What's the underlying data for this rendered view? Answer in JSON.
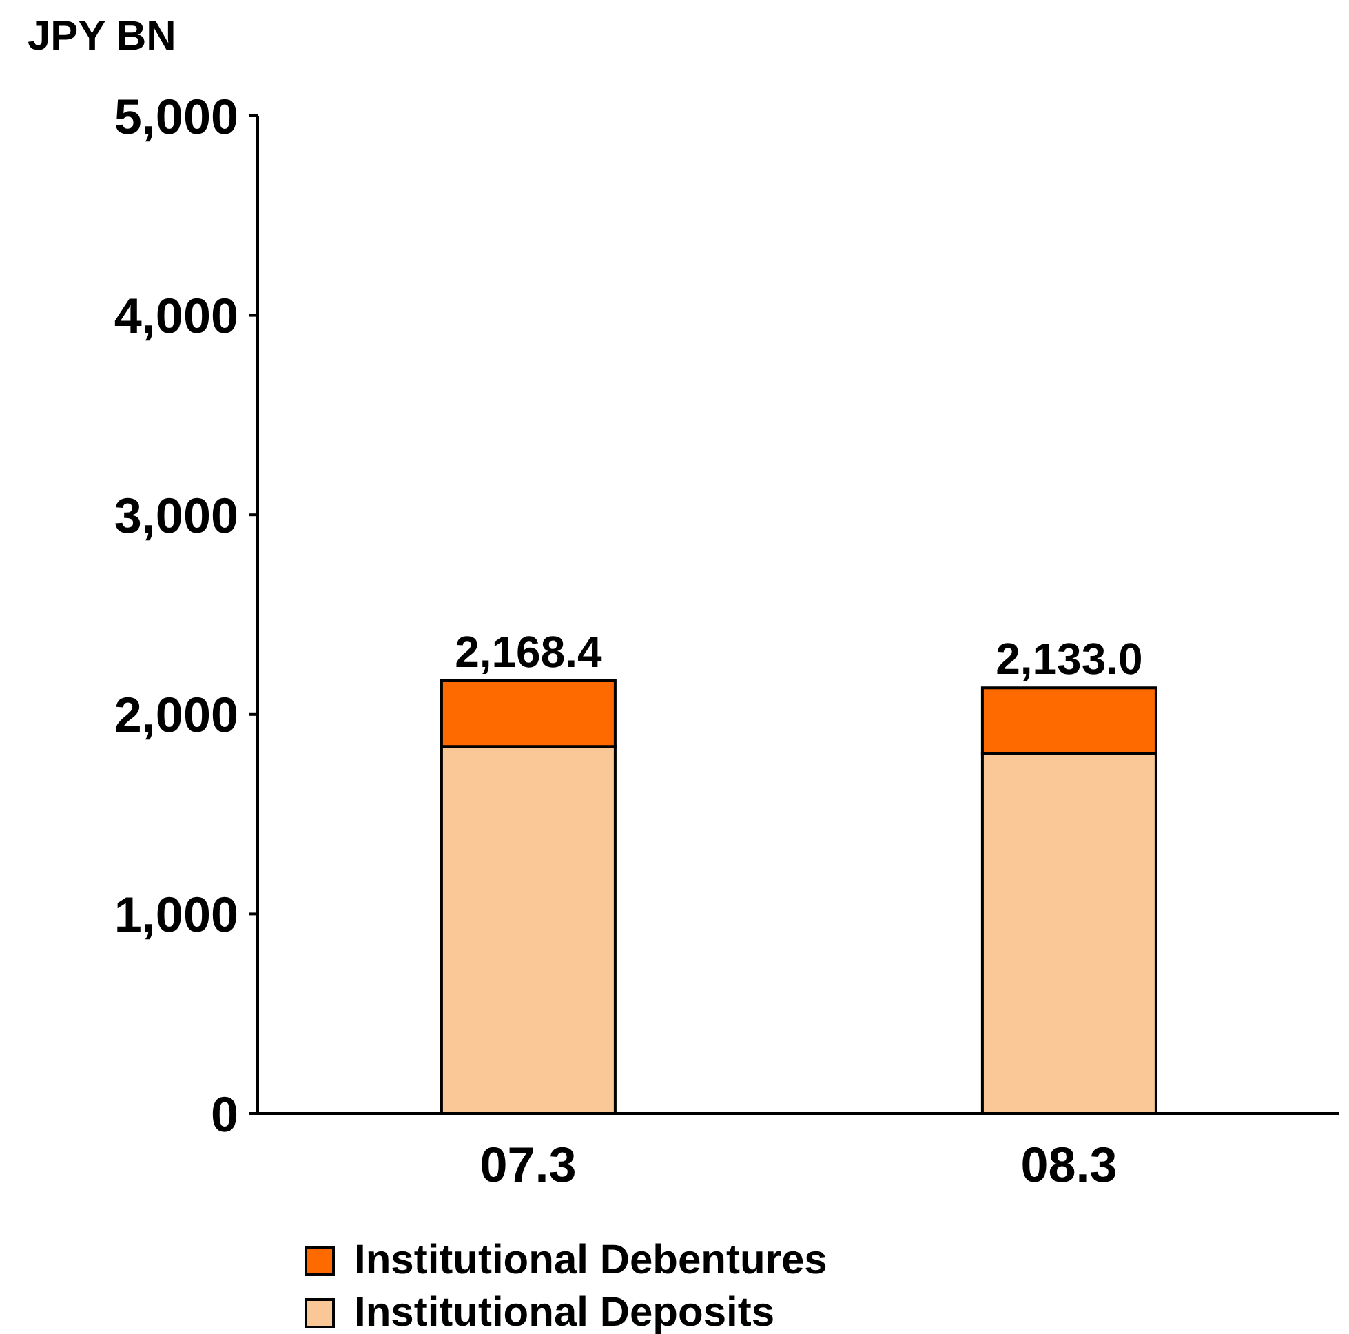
{
  "chart_data": {
    "type": "bar",
    "ylabel": "JPY BN",
    "categories": [
      "07.3",
      "08.3"
    ],
    "stacked": true,
    "series": [
      {
        "name": "Institutional Deposits",
        "color": "#f9c896",
        "values": [
          1840,
          1805
        ]
      },
      {
        "name": "Institutional Debentures",
        "color": "#ff6a00",
        "values": [
          328.4,
          328
        ]
      }
    ],
    "totals": [
      "2,168.4",
      "2,133.0"
    ],
    "ylim": [
      0,
      5000
    ],
    "yticks": [
      {
        "value": 0,
        "label": "0"
      },
      {
        "value": 1000,
        "label": "1,000"
      },
      {
        "value": 2000,
        "label": "2,000"
      },
      {
        "value": 3000,
        "label": "3,000"
      },
      {
        "value": 4000,
        "label": "4,000"
      },
      {
        "value": 5000,
        "label": "5,000"
      }
    ],
    "grid": false,
    "legend": "bottom left"
  }
}
